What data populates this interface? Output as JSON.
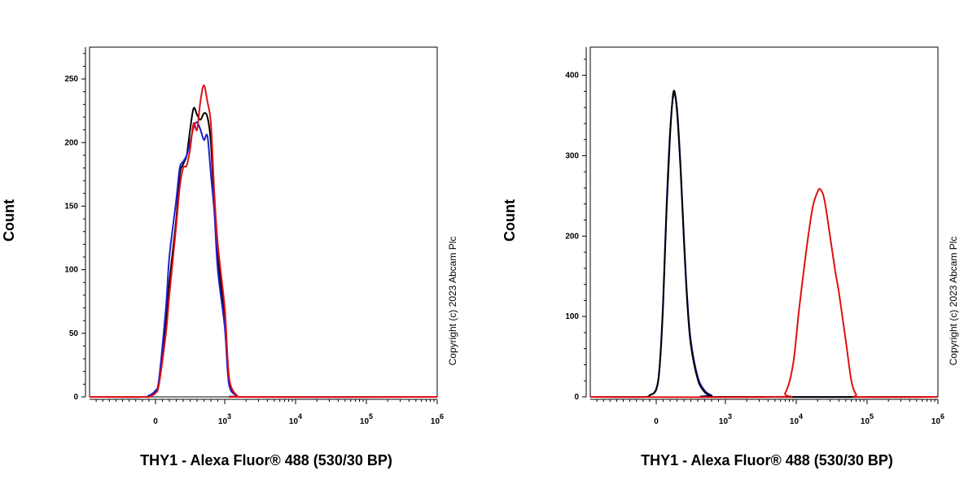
{
  "chart_data": [
    {
      "type": "line",
      "xlabel": "THY1 - Alexa Fluor® 488 (530/30 BP)",
      "ylabel": "Count",
      "x_scale": "biexponential",
      "xlim": [
        -1000,
        1000000
      ],
      "ylim": [
        0,
        275
      ],
      "y_ticks": [
        0,
        50,
        100,
        150,
        200,
        250
      ],
      "x_ticks": [
        {
          "value": 0,
          "label": "0",
          "exp": ""
        },
        {
          "value": 1000,
          "label": "10",
          "exp": "3"
        },
        {
          "value": 10000,
          "label": "10",
          "exp": "4"
        },
        {
          "value": 100000,
          "label": "10",
          "exp": "5"
        },
        {
          "value": 1000000,
          "label": "10",
          "exp": "6"
        }
      ],
      "copyright": "Copyright (c) 2023 Abcam Plc",
      "series": [
        {
          "color": "#000000",
          "x": [
            -1000,
            -200,
            -100,
            0,
            50,
            150,
            200,
            300,
            350,
            400,
            450,
            500,
            550,
            600,
            650,
            700,
            750,
            800,
            850,
            900,
            1000,
            1100,
            1200,
            1500,
            2000,
            1000000
          ],
          "values": [
            0,
            0,
            1,
            4,
            12,
            60,
            90,
            140,
            175,
            183,
            190,
            210,
            227,
            222,
            218,
            223,
            220,
            200,
            150,
            110,
            60,
            25,
            8,
            1,
            0,
            0
          ]
        },
        {
          "color": "#2020d0",
          "x": [
            -1000,
            -200,
            -100,
            0,
            50,
            150,
            200,
            300,
            350,
            400,
            450,
            500,
            550,
            600,
            650,
            700,
            750,
            800,
            850,
            900,
            1000,
            1100,
            1200,
            1500,
            2000,
            1000000
          ],
          "values": [
            0,
            0,
            1,
            5,
            14,
            70,
            110,
            155,
            180,
            185,
            190,
            200,
            212,
            216,
            210,
            202,
            205,
            175,
            145,
            100,
            55,
            20,
            6,
            1,
            0,
            0
          ]
        },
        {
          "color": "#e01010",
          "x": [
            -1000,
            -200,
            -100,
            0,
            50,
            150,
            200,
            300,
            350,
            400,
            450,
            500,
            550,
            600,
            650,
            700,
            750,
            800,
            850,
            900,
            1000,
            1100,
            1200,
            1500,
            2000,
            1000000
          ],
          "values": [
            0,
            0,
            0,
            3,
            10,
            50,
            80,
            135,
            165,
            180,
            182,
            195,
            215,
            210,
            233,
            245,
            232,
            215,
            160,
            120,
            70,
            30,
            10,
            1,
            0,
            0
          ]
        }
      ]
    },
    {
      "type": "line",
      "xlabel": "THY1 - Alexa Fluor® 488 (530/30 BP)",
      "ylabel": "Count",
      "x_scale": "biexponential",
      "xlim": [
        -1000,
        1000000
      ],
      "ylim": [
        0,
        435
      ],
      "y_ticks": [
        0,
        100,
        200,
        300,
        400
      ],
      "x_ticks": [
        {
          "value": 0,
          "label": "0",
          "exp": ""
        },
        {
          "value": 1000,
          "label": "10",
          "exp": "3"
        },
        {
          "value": 10000,
          "label": "10",
          "exp": "4"
        },
        {
          "value": 100000,
          "label": "10",
          "exp": "5"
        },
        {
          "value": 1000000,
          "label": "10",
          "exp": "6"
        }
      ],
      "copyright": "Copyright (c) 2023 Abcam Plc",
      "series": [
        {
          "color": "#2020d0",
          "x": [
            -1000,
            -200,
            -100,
            0,
            50,
            100,
            150,
            200,
            250,
            300,
            350,
            400,
            450,
            500,
            600,
            700,
            800,
            900,
            1000000
          ],
          "values": [
            0,
            0,
            2,
            10,
            40,
            120,
            240,
            330,
            375,
            360,
            290,
            200,
            120,
            70,
            25,
            8,
            2,
            0,
            0
          ]
        },
        {
          "color": "#000000",
          "x": [
            -1000,
            -200,
            -100,
            0,
            50,
            100,
            150,
            200,
            250,
            300,
            350,
            400,
            450,
            500,
            600,
            700,
            800,
            900,
            1000000
          ],
          "values": [
            0,
            0,
            2,
            9,
            38,
            115,
            235,
            325,
            380,
            355,
            285,
            195,
            115,
            65,
            22,
            6,
            1,
            0,
            0
          ]
        },
        {
          "color": "#e01010",
          "x": [
            -1000,
            5000,
            7000,
            9000,
            11000,
            14000,
            17000,
            20000,
            22000,
            25000,
            30000,
            35000,
            40000,
            50000,
            60000,
            70000,
            80000,
            1000000
          ],
          "values": [
            0,
            0,
            5,
            40,
            110,
            185,
            235,
            255,
            258,
            245,
            200,
            160,
            130,
            70,
            20,
            3,
            0,
            0
          ]
        }
      ]
    }
  ]
}
